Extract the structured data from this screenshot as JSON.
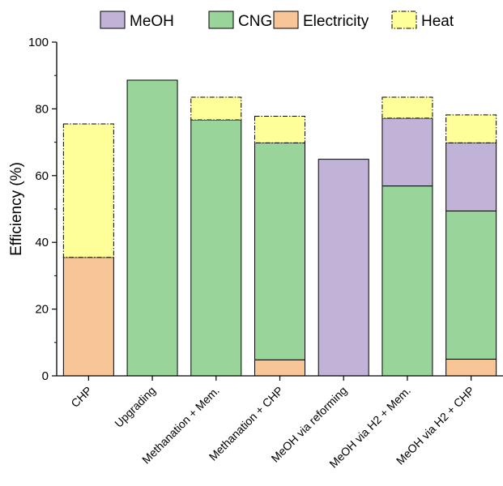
{
  "chart_data": {
    "type": "bar",
    "stacked": true,
    "categories": [
      "CHP",
      "Upgrading",
      "Methanation + Mem.",
      "Methanation + CHP",
      "MeOH via reforming",
      "MeOH via H2 + Mem.",
      "MeOH via H2 + CHP"
    ],
    "series": [
      {
        "name": "Electricity",
        "color": "#f8c696",
        "stroke": "solid",
        "values": [
          35.5,
          0,
          0,
          4.8,
          0,
          0,
          5.0
        ]
      },
      {
        "name": "CNG",
        "color": "#99d59a",
        "stroke": "solid",
        "values": [
          0,
          88.6,
          76.7,
          65.0,
          0,
          56.9,
          44.4
        ]
      },
      {
        "name": "MeOH",
        "color": "#c1b3d8",
        "stroke": "solid",
        "values": [
          0,
          0,
          0,
          0,
          64.9,
          20.3,
          20.4
        ]
      },
      {
        "name": "Heat",
        "color": "#ffff99",
        "stroke": "dashdot",
        "values": [
          40.0,
          0,
          6.8,
          8.0,
          0,
          6.3,
          8.4
        ]
      }
    ],
    "legend_order": [
      "MeOH",
      "CNG",
      "Electricity",
      "Heat"
    ],
    "legend_position": "top",
    "xlabel": "",
    "ylabel": "Efficiency (%)",
    "ylim": [
      0,
      100
    ],
    "yticks": [
      "0",
      "20",
      "40",
      "60",
      "80",
      "100"
    ],
    "grid": false
  }
}
